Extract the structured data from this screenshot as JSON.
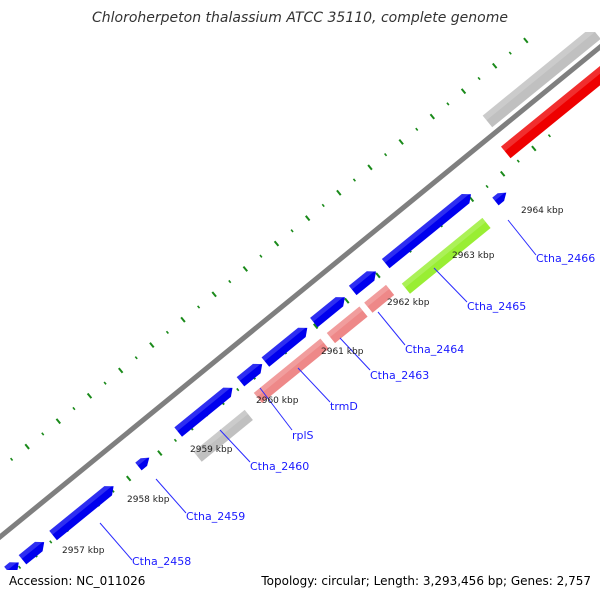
{
  "title": "Chloroherpeton thalassium ATCC 35110, complete genome",
  "footer": {
    "accession": "Accession: NC_011026",
    "summary": "Topology: circular; Length: 3,293,456 bp; Genes: 2,757"
  },
  "colors": {
    "backbone": "#7f7f7f",
    "tick": "#1a8a1a",
    "label": "#1a1aff",
    "leader": "#2a2aff",
    "blue_gene": "#0000ee",
    "red_gene": "#ee0000",
    "pink_gene": "#ee8888",
    "grey_gene": "#c0c0c0",
    "lime_gene": "#99ee33",
    "green_gene": "#22aa22"
  },
  "tick_labels": [
    "2957 kbp",
    "2958 kbp",
    "2959 kbp",
    "2960 kbp",
    "2961 kbp",
    "2962 kbp",
    "2963 kbp",
    "2964 kbp"
  ],
  "gene_labels": [
    "Ctha_2458",
    "Ctha_2459",
    "Ctha_2460",
    "rplS",
    "trmD",
    "Ctha_2463",
    "Ctha_2464",
    "Ctha_2465",
    "Ctha_2466"
  ]
}
